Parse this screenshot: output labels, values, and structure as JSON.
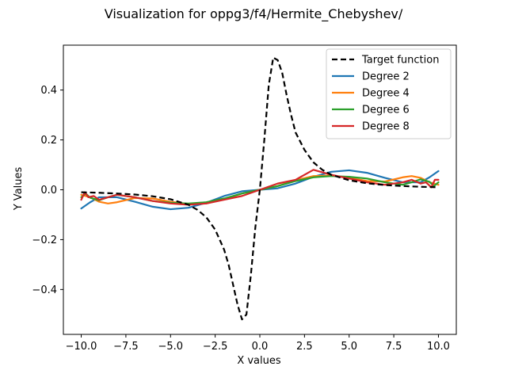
{
  "chart_data": {
    "type": "line",
    "title": "Visualization for oppg3/f4/Hermite_Chebyshev/",
    "xlabel": "X values",
    "ylabel": "Y Values",
    "xlim": [
      -11.0,
      11.0
    ],
    "ylim": [
      -0.58,
      0.58
    ],
    "xticks": [
      -10.0,
      -7.5,
      -5.0,
      -2.5,
      0.0,
      2.5,
      5.0,
      7.5,
      10.0
    ],
    "xtick_labels": [
      "−10.0",
      "−7.5",
      "−5.0",
      "−2.5",
      "0.0",
      "2.5",
      "5.0",
      "7.5",
      "10.0"
    ],
    "yticks": [
      -0.4,
      -0.2,
      0.0,
      0.2,
      0.4
    ],
    "ytick_labels": [
      "−0.4",
      "−0.2",
      "0.0",
      "0.2",
      "0.4"
    ],
    "grid": false,
    "legend_position": "top-right",
    "series": [
      {
        "name": "Target function",
        "color": "#000000",
        "dash": true,
        "x": [
          -10,
          -9,
          -8,
          -7,
          -6,
          -5,
          -4,
          -3.5,
          -3,
          -2.5,
          -2,
          -1.75,
          -1.5,
          -1.25,
          -1,
          -0.75,
          -0.5,
          -0.25,
          0,
          0.25,
          0.5,
          0.75,
          1,
          1.25,
          1.5,
          1.75,
          2,
          2.5,
          3,
          3.5,
          4,
          5,
          6,
          7,
          8,
          9,
          10
        ],
        "y": [
          -0.01,
          -0.012,
          -0.015,
          -0.019,
          -0.026,
          -0.038,
          -0.06,
          -0.08,
          -0.11,
          -0.16,
          -0.24,
          -0.3,
          -0.38,
          -0.46,
          -0.52,
          -0.5,
          -0.34,
          -0.15,
          0.0,
          0.2,
          0.42,
          0.53,
          0.52,
          0.47,
          0.38,
          0.3,
          0.23,
          0.16,
          0.11,
          0.08,
          0.06,
          0.038,
          0.026,
          0.019,
          0.015,
          0.012,
          0.01
        ]
      },
      {
        "name": "Degree 2",
        "color": "#1f77b4",
        "dash": false,
        "x": [
          -10,
          -9.5,
          -9,
          -8,
          -7,
          -6,
          -5,
          -4,
          -3,
          -2,
          -1,
          0,
          1,
          2,
          3,
          4,
          5,
          6,
          7,
          8,
          9,
          9.5,
          10
        ],
        "y": [
          -0.075,
          -0.05,
          -0.03,
          -0.03,
          -0.048,
          -0.068,
          -0.078,
          -0.072,
          -0.052,
          -0.025,
          -0.006,
          0.0,
          0.006,
          0.025,
          0.052,
          0.072,
          0.078,
          0.068,
          0.048,
          0.03,
          0.03,
          0.05,
          0.075
        ]
      },
      {
        "name": "Degree 4",
        "color": "#ff7f0e",
        "dash": false,
        "x": [
          -10,
          -9.5,
          -9,
          -8.5,
          -8,
          -7,
          -6,
          -5,
          -4,
          -3,
          -2,
          -1,
          0,
          1,
          2,
          3,
          4,
          5,
          6,
          7,
          8,
          8.5,
          9,
          9.5,
          10
        ],
        "y": [
          -0.02,
          -0.03,
          -0.048,
          -0.055,
          -0.05,
          -0.033,
          -0.035,
          -0.048,
          -0.057,
          -0.055,
          -0.038,
          -0.015,
          0.0,
          0.015,
          0.038,
          0.055,
          0.057,
          0.048,
          0.035,
          0.033,
          0.05,
          0.055,
          0.048,
          0.03,
          0.02
        ]
      },
      {
        "name": "Degree 6",
        "color": "#2ca02c",
        "dash": false,
        "x": [
          -10,
          -9.75,
          -9.5,
          -9,
          -8.5,
          -8,
          -7,
          -6,
          -5,
          -4,
          -3,
          -2,
          -1,
          0,
          1,
          2,
          3,
          4,
          5,
          6,
          7,
          8,
          8.5,
          9,
          9.5,
          9.75,
          10
        ],
        "y": [
          -0.03,
          -0.015,
          -0.032,
          -0.042,
          -0.03,
          -0.02,
          -0.03,
          -0.045,
          -0.052,
          -0.055,
          -0.05,
          -0.035,
          -0.015,
          0.0,
          0.015,
          0.035,
          0.05,
          0.055,
          0.052,
          0.045,
          0.03,
          0.02,
          0.03,
          0.042,
          0.032,
          0.015,
          0.03
        ]
      },
      {
        "name": "Degree 8",
        "color": "#d62728",
        "dash": false,
        "x": [
          -10,
          -9.8,
          -9.6,
          -9.3,
          -9,
          -8.5,
          -8,
          -7,
          -6,
          -5,
          -4,
          -3,
          -2,
          -1,
          0,
          1,
          2,
          3,
          4,
          5,
          6,
          7,
          8,
          8.5,
          9,
          9.3,
          9.6,
          9.8,
          10
        ],
        "y": [
          -0.04,
          -0.01,
          -0.03,
          -0.025,
          -0.04,
          -0.03,
          -0.02,
          -0.03,
          -0.045,
          -0.055,
          -0.06,
          -0.055,
          -0.04,
          -0.025,
          0.0,
          0.025,
          0.04,
          0.08,
          0.06,
          0.045,
          0.03,
          0.02,
          0.03,
          0.04,
          0.025,
          0.03,
          0.01,
          0.04,
          0.04
        ]
      }
    ]
  }
}
